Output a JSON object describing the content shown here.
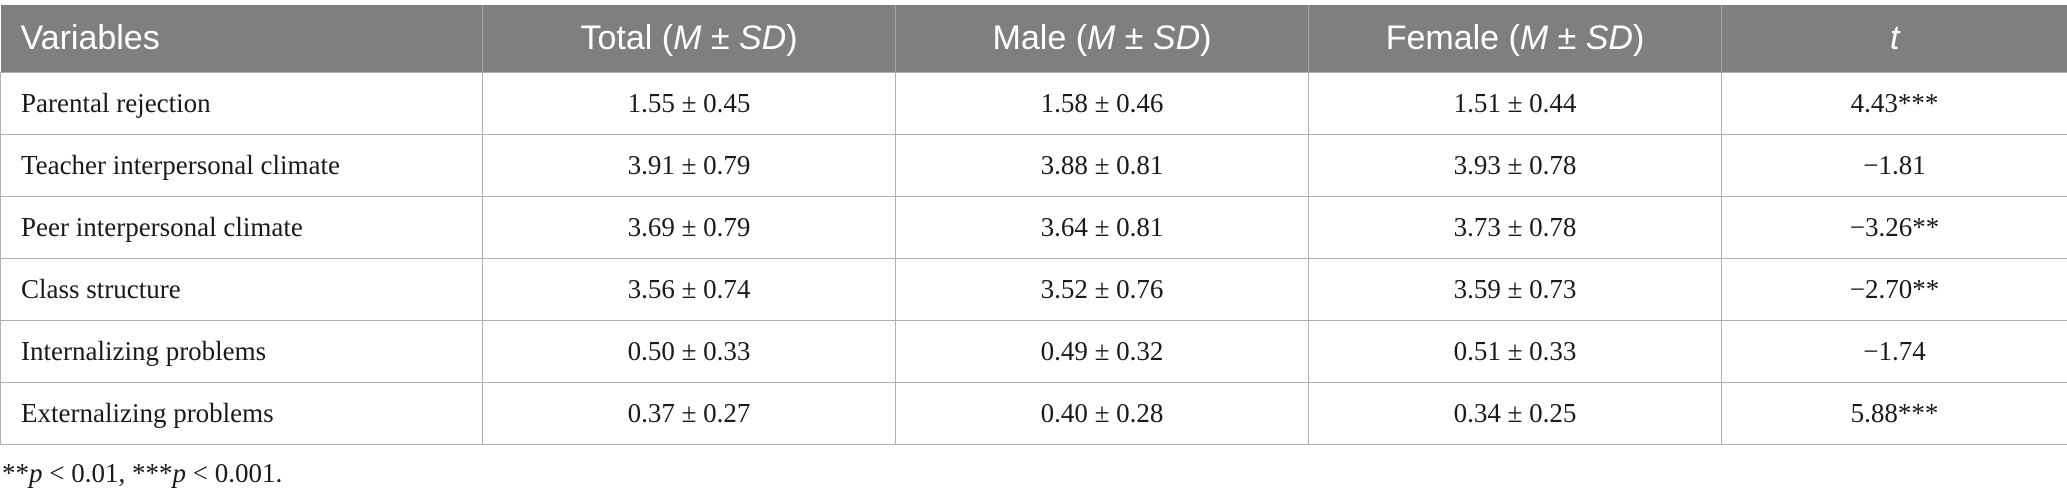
{
  "table": {
    "headers": [
      {
        "pre": "Variables",
        "ital": "",
        "post": ""
      },
      {
        "pre": "Total (",
        "ital": "M ± SD",
        "post": ")"
      },
      {
        "pre": "Male (",
        "ital": "M ± SD",
        "post": ")"
      },
      {
        "pre": "Female (",
        "ital": "M ± SD",
        "post": ")"
      },
      {
        "pre": "",
        "ital": "t",
        "post": ""
      }
    ],
    "rows": [
      [
        "Parental rejection",
        "1.55 ± 0.45",
        "1.58 ± 0.46",
        "1.51 ± 0.44",
        "4.43***"
      ],
      [
        "Teacher interpersonal climate",
        "3.91 ± 0.79",
        "3.88 ± 0.81",
        "3.93 ± 0.78",
        "−1.81"
      ],
      [
        "Peer interpersonal climate",
        "3.69 ± 0.79",
        "3.64 ± 0.81",
        "3.73 ± 0.78",
        "−3.26**"
      ],
      [
        "Class structure",
        "3.56 ± 0.74",
        "3.52 ± 0.76",
        "3.59 ± 0.73",
        "−2.70**"
      ],
      [
        "Internalizing problems",
        "0.50 ± 0.33",
        "0.49 ± 0.32",
        "0.51 ± 0.33",
        "−1.74"
      ],
      [
        "Externalizing problems",
        "0.37 ± 0.27",
        "0.40 ± 0.28",
        "0.34 ± 0.25",
        "5.88***"
      ]
    ]
  },
  "footnote": {
    "a_stars": "**",
    "a_var": "p",
    "a_rest": " < 0.01, ",
    "b_stars": "***",
    "b_var": "p",
    "b_rest": " < 0.001."
  },
  "colors": {
    "header_bg": "#7f7f7f",
    "header_text": "#ffffff",
    "border": "#b0b0b0"
  }
}
